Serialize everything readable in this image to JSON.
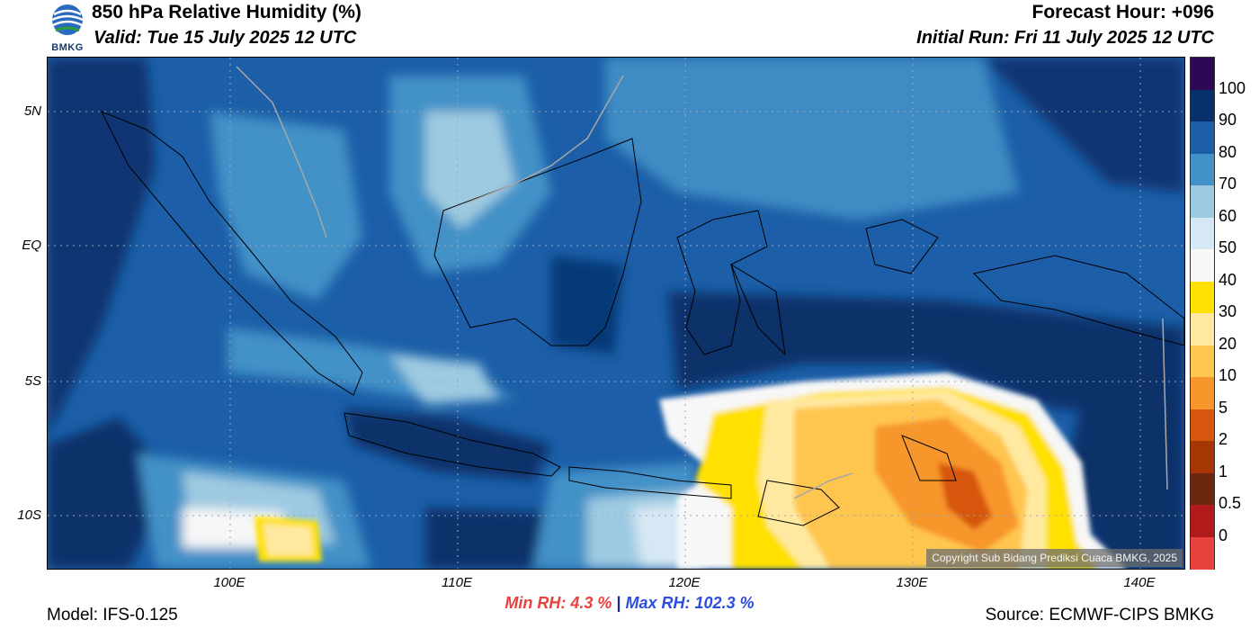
{
  "header": {
    "title": "850 hPa Relative Humidity (%)",
    "valid": "Valid: Tue 15 July 2025 12 UTC",
    "forecast_hour": "Forecast Hour: +096",
    "initial_run": "Initial Run: Fri 11 July 2025 12 UTC"
  },
  "logo": {
    "text": "BMKG"
  },
  "map": {
    "lat_labels": [
      "5N",
      "EQ",
      "5S",
      "10S"
    ],
    "lon_labels": [
      "100E",
      "110E",
      "120E",
      "130E",
      "140E"
    ],
    "copyright": "Copyright Sub Bidang Prediksi Cuaca BMKG, 2025"
  },
  "colorbar": {
    "labels": [
      "100",
      "90",
      "80",
      "70",
      "60",
      "50",
      "40",
      "30",
      "20",
      "10",
      "5",
      "2",
      "1",
      "0.5",
      "0"
    ],
    "colors": [
      "#2e0854",
      "#08306b",
      "#1c5fa8",
      "#4291c7",
      "#9ecae1",
      "#d6e8f3",
      "#f7f7f7",
      "#ffe000",
      "#ffe9a0",
      "#ffc650",
      "#f7962b",
      "#d7560e",
      "#a63603",
      "#6b2710",
      "#b01a1a",
      "#e8413e"
    ]
  },
  "stats": {
    "min_label": "Min RH:",
    "min_value": "4.3 %",
    "separator": "|",
    "max_label": "Max RH:",
    "max_value": "102.3 %"
  },
  "footer": {
    "model": "Model: IFS-0.125",
    "source": "Source: ECMWF-CIPS BMKG"
  }
}
